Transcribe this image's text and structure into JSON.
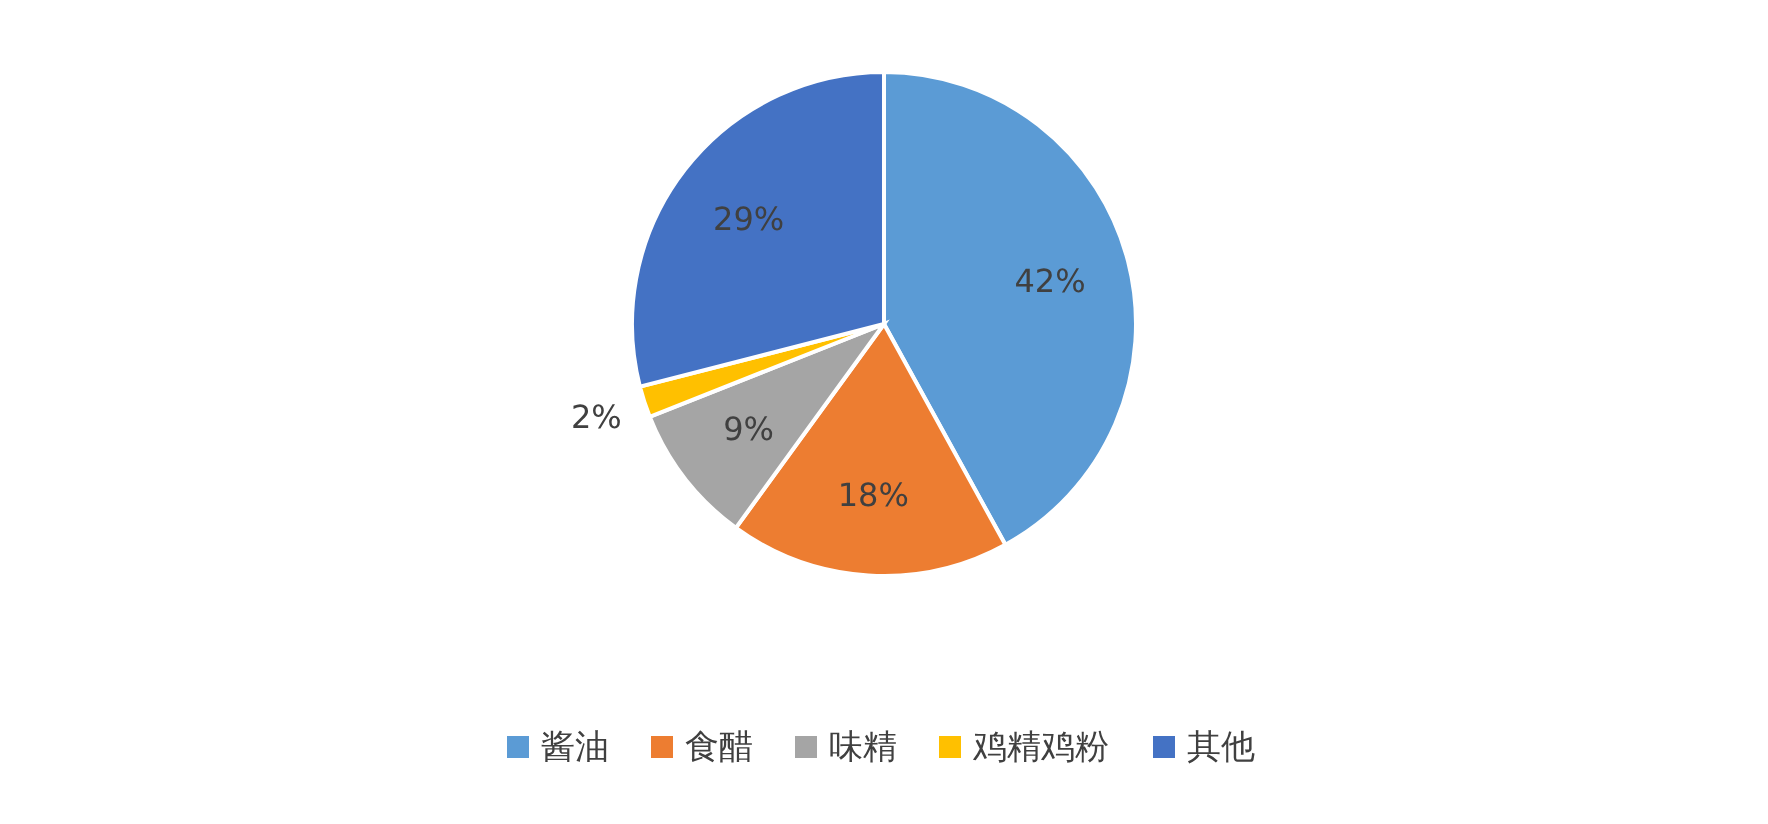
{
  "chart_data": {
    "type": "pie",
    "categories": [
      "酱油",
      "食醋",
      "味精",
      "鸡精鸡粉",
      "其他"
    ],
    "values": [
      42,
      18,
      9,
      2,
      29
    ],
    "colors": [
      "#5b9bd5",
      "#ed7d31",
      "#a5a5a5",
      "#ffc000",
      "#4472c4"
    ],
    "value_labels": [
      "42%",
      "18%",
      "9%",
      "2%",
      "29%"
    ],
    "legend": "bottom"
  }
}
